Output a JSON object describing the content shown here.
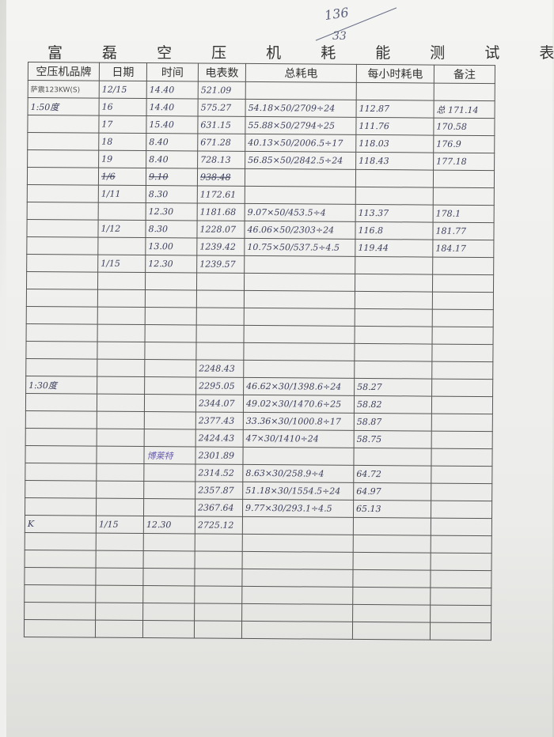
{
  "annotations": {
    "top_number": "136",
    "top_number_2": "33"
  },
  "title": "富 磊 空 压 机 耗 能 测 试 表",
  "columns": [
    "空压机品牌",
    "日期",
    "时间",
    "电表数",
    "总耗电",
    "每小时耗电",
    "备注"
  ],
  "rows": [
    {
      "cells": [
        "萨震123KW(S)",
        "12/15",
        "14.40",
        "521.09",
        "",
        "",
        ""
      ]
    },
    {
      "cells": [
        "1:50度",
        "16",
        "14.40",
        "575.27",
        "54.18×50/2709÷24",
        "112.87",
        "总 171.14"
      ]
    },
    {
      "cells": [
        "",
        "17",
        "15.40",
        "631.15",
        "55.88×50/2794÷25",
        "111.76",
        "170.58"
      ]
    },
    {
      "cells": [
        "",
        "18",
        "8.40",
        "671.28",
        "40.13×50/2006.5÷17",
        "118.03",
        "176.9"
      ]
    },
    {
      "cells": [
        "",
        "19",
        "8.40",
        "728.13",
        "56.85×50/2842.5÷24",
        "118.43",
        "177.18"
      ]
    },
    {
      "cells": [
        "",
        "1/6",
        "9.10",
        "938.48",
        "",
        "",
        ""
      ],
      "struck": true
    },
    {
      "cells": [
        "",
        "1/11",
        "8.30",
        "1172.61",
        "",
        "",
        ""
      ]
    },
    {
      "cells": [
        "",
        "",
        "12.30",
        "1181.68",
        "9.07×50/453.5÷4",
        "113.37",
        "178.1"
      ]
    },
    {
      "cells": [
        "",
        "1/12",
        "8.30",
        "1228.07",
        "46.06×50/2303÷24",
        "116.8",
        "181.77"
      ]
    },
    {
      "cells": [
        "",
        "",
        "13.00",
        "1239.42",
        "10.75×50/537.5÷4.5",
        "119.44",
        "184.17"
      ]
    },
    {
      "cells": [
        "",
        "1/15",
        "12.30",
        "1239.57",
        "",
        "",
        ""
      ]
    },
    {
      "cells": [
        "",
        "",
        "",
        "",
        "",
        "",
        ""
      ]
    },
    {
      "cells": [
        "",
        "",
        "",
        "",
        "",
        "",
        ""
      ]
    },
    {
      "cells": [
        "",
        "",
        "",
        "",
        "",
        "",
        ""
      ]
    },
    {
      "cells": [
        "",
        "",
        "",
        "",
        "",
        "",
        ""
      ]
    },
    {
      "cells": [
        "",
        "",
        "",
        "",
        "",
        "",
        ""
      ]
    },
    {
      "cells": [
        "",
        "",
        "",
        "2248.43",
        "",
        "",
        ""
      ]
    },
    {
      "cells": [
        "1:30度",
        "",
        "",
        "2295.05",
        "46.62×30/1398.6÷24",
        "58.27",
        ""
      ]
    },
    {
      "cells": [
        "",
        "",
        "",
        "2344.07",
        "49.02×30/1470.6÷25",
        "58.82",
        ""
      ]
    },
    {
      "cells": [
        "",
        "",
        "",
        "2377.43",
        "33.36×30/1000.8÷17",
        "58.87",
        ""
      ]
    },
    {
      "cells": [
        "",
        "",
        "",
        "2424.43",
        "47×30/1410÷24",
        "58.75",
        ""
      ]
    },
    {
      "cells": [
        "",
        "",
        "博莱特",
        "2301.89",
        "",
        "",
        ""
      ]
    },
    {
      "cells": [
        "",
        "",
        "",
        "2314.52",
        "8.63×30/258.9÷4",
        "64.72",
        ""
      ]
    },
    {
      "cells": [
        "",
        "",
        "",
        "2357.87",
        "51.18×30/1554.5÷24",
        "64.97",
        ""
      ]
    },
    {
      "cells": [
        "",
        "",
        "",
        "2367.64",
        "9.77×30/293.1÷4.5",
        "65.13",
        ""
      ]
    },
    {
      "cells": [
        "K",
        "1/15",
        "12.30",
        "2725.12",
        "",
        "",
        ""
      ]
    },
    {
      "cells": [
        "",
        "",
        "",
        "",
        "",
        "",
        ""
      ]
    },
    {
      "cells": [
        "",
        "",
        "",
        "",
        "",
        "",
        ""
      ]
    },
    {
      "cells": [
        "",
        "",
        "",
        "",
        "",
        "",
        ""
      ]
    },
    {
      "cells": [
        "",
        "",
        "",
        "",
        "",
        "",
        ""
      ]
    },
    {
      "cells": [
        "",
        "",
        "",
        "",
        "",
        "",
        ""
      ]
    },
    {
      "cells": [
        "",
        "",
        "",
        "",
        "",
        "",
        ""
      ]
    }
  ]
}
